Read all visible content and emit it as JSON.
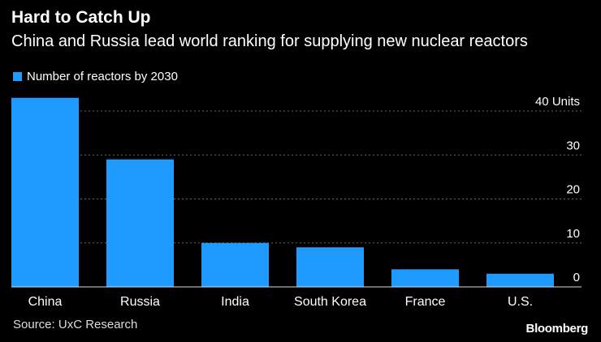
{
  "header": {
    "title": "Hard to Catch Up",
    "subtitle": "China and Russia lead world ranking for supplying new nuclear reactors"
  },
  "legend": {
    "label": "Number of reactors by 2030"
  },
  "footer": {
    "source": "Source: UxC Research",
    "brand": "Bloomberg"
  },
  "colors": {
    "bar": "#1f9bff",
    "grid": "#666666",
    "background": "#000000"
  },
  "chart_data": {
    "type": "bar",
    "title": "Hard to Catch Up",
    "subtitle": "China and Russia lead world ranking for supplying new nuclear reactors",
    "categories": [
      "China",
      "Russia",
      "India",
      "South Korea",
      "France",
      "U.S."
    ],
    "series": [
      {
        "name": "Number of reactors by 2030",
        "values": [
          43,
          29,
          10,
          9,
          4,
          3
        ]
      }
    ],
    "xlabel": "",
    "ylabel": "",
    "ylim": [
      0,
      40
    ],
    "yticks": [
      {
        "value": 40,
        "label": "40 Units"
      },
      {
        "value": 30,
        "label": "30"
      },
      {
        "value": 20,
        "label": "20"
      },
      {
        "value": 10,
        "label": "10"
      },
      {
        "value": 0,
        "label": "0"
      }
    ],
    "grid": true,
    "axis_side": "right",
    "legend_position": "top-left"
  }
}
